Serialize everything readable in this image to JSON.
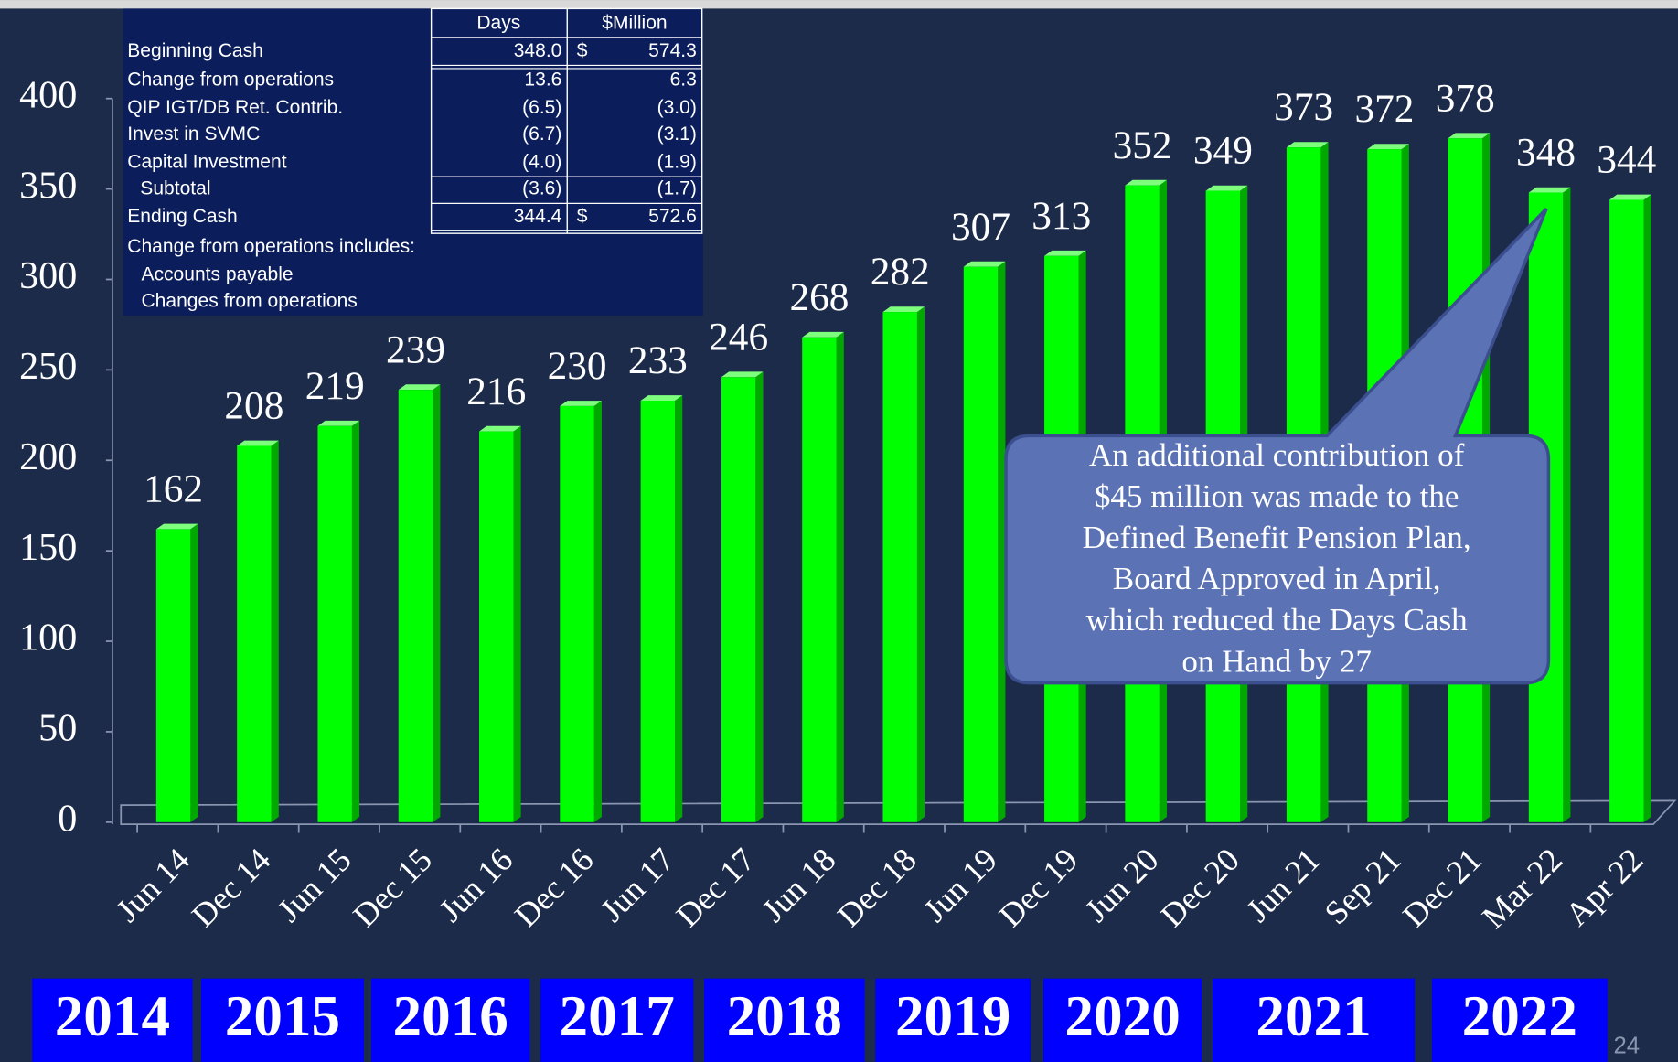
{
  "chart_data": {
    "type": "bar",
    "categories": [
      "Jun 14",
      "Dec 14",
      "Jun 15",
      "Dec 15",
      "Jun 16",
      "Dec 16",
      "Jun 17",
      "Dec 17",
      "Jun 18",
      "Dec 18",
      "Jun 19",
      "Dec 19",
      "Jun 20",
      "Dec 20",
      "Jun 21",
      "Sep 21",
      "Dec 21",
      "Mar 22",
      "Apr 22"
    ],
    "values": [
      162,
      208,
      219,
      239,
      216,
      230,
      233,
      246,
      268,
      282,
      307,
      313,
      352,
      349,
      373,
      372,
      378,
      348,
      344
    ],
    "color": "#00ff00",
    "ylim": [
      0,
      400
    ],
    "yticks": [
      0,
      50,
      100,
      150,
      200,
      250,
      300,
      350,
      400
    ]
  },
  "table": {
    "header": [
      "Days",
      "$Million"
    ],
    "rows": [
      {
        "label": "Beginning Cash",
        "days": "348.0",
        "dollar": "$",
        "million": "574.3"
      },
      {
        "label": "Change from operations",
        "days": "13.6",
        "million": "6.3"
      },
      {
        "label": "QIP IGT/DB Ret. Contrib.",
        "days": "(6.5)",
        "million": "(3.0)"
      },
      {
        "label": "Invest in SVMC",
        "days": "(6.7)",
        "million": "(3.1)"
      },
      {
        "label": "Capital Investment",
        "days": "(4.0)",
        "million": "(1.9)"
      },
      {
        "label": "Subtotal",
        "days": "(3.6)",
        "million": "(1.7)"
      },
      {
        "label": "Ending Cash",
        "days": "344.4",
        "dollar": "$",
        "million": "572.6"
      }
    ],
    "notes": [
      "Change from operations includes:",
      "Accounts payable",
      "Changes from operations"
    ]
  },
  "callout": [
    "An additional contribution of",
    "$45 million was made to the",
    "Defined Benefit Pension Plan,",
    "Board Approved in April,",
    "which reduced the Days Cash",
    "on Hand by 27"
  ],
  "years": [
    "2014",
    "2015",
    "2016",
    "2017",
    "2018",
    "2019",
    "2020",
    "2021",
    "2022"
  ],
  "page_number": "24"
}
